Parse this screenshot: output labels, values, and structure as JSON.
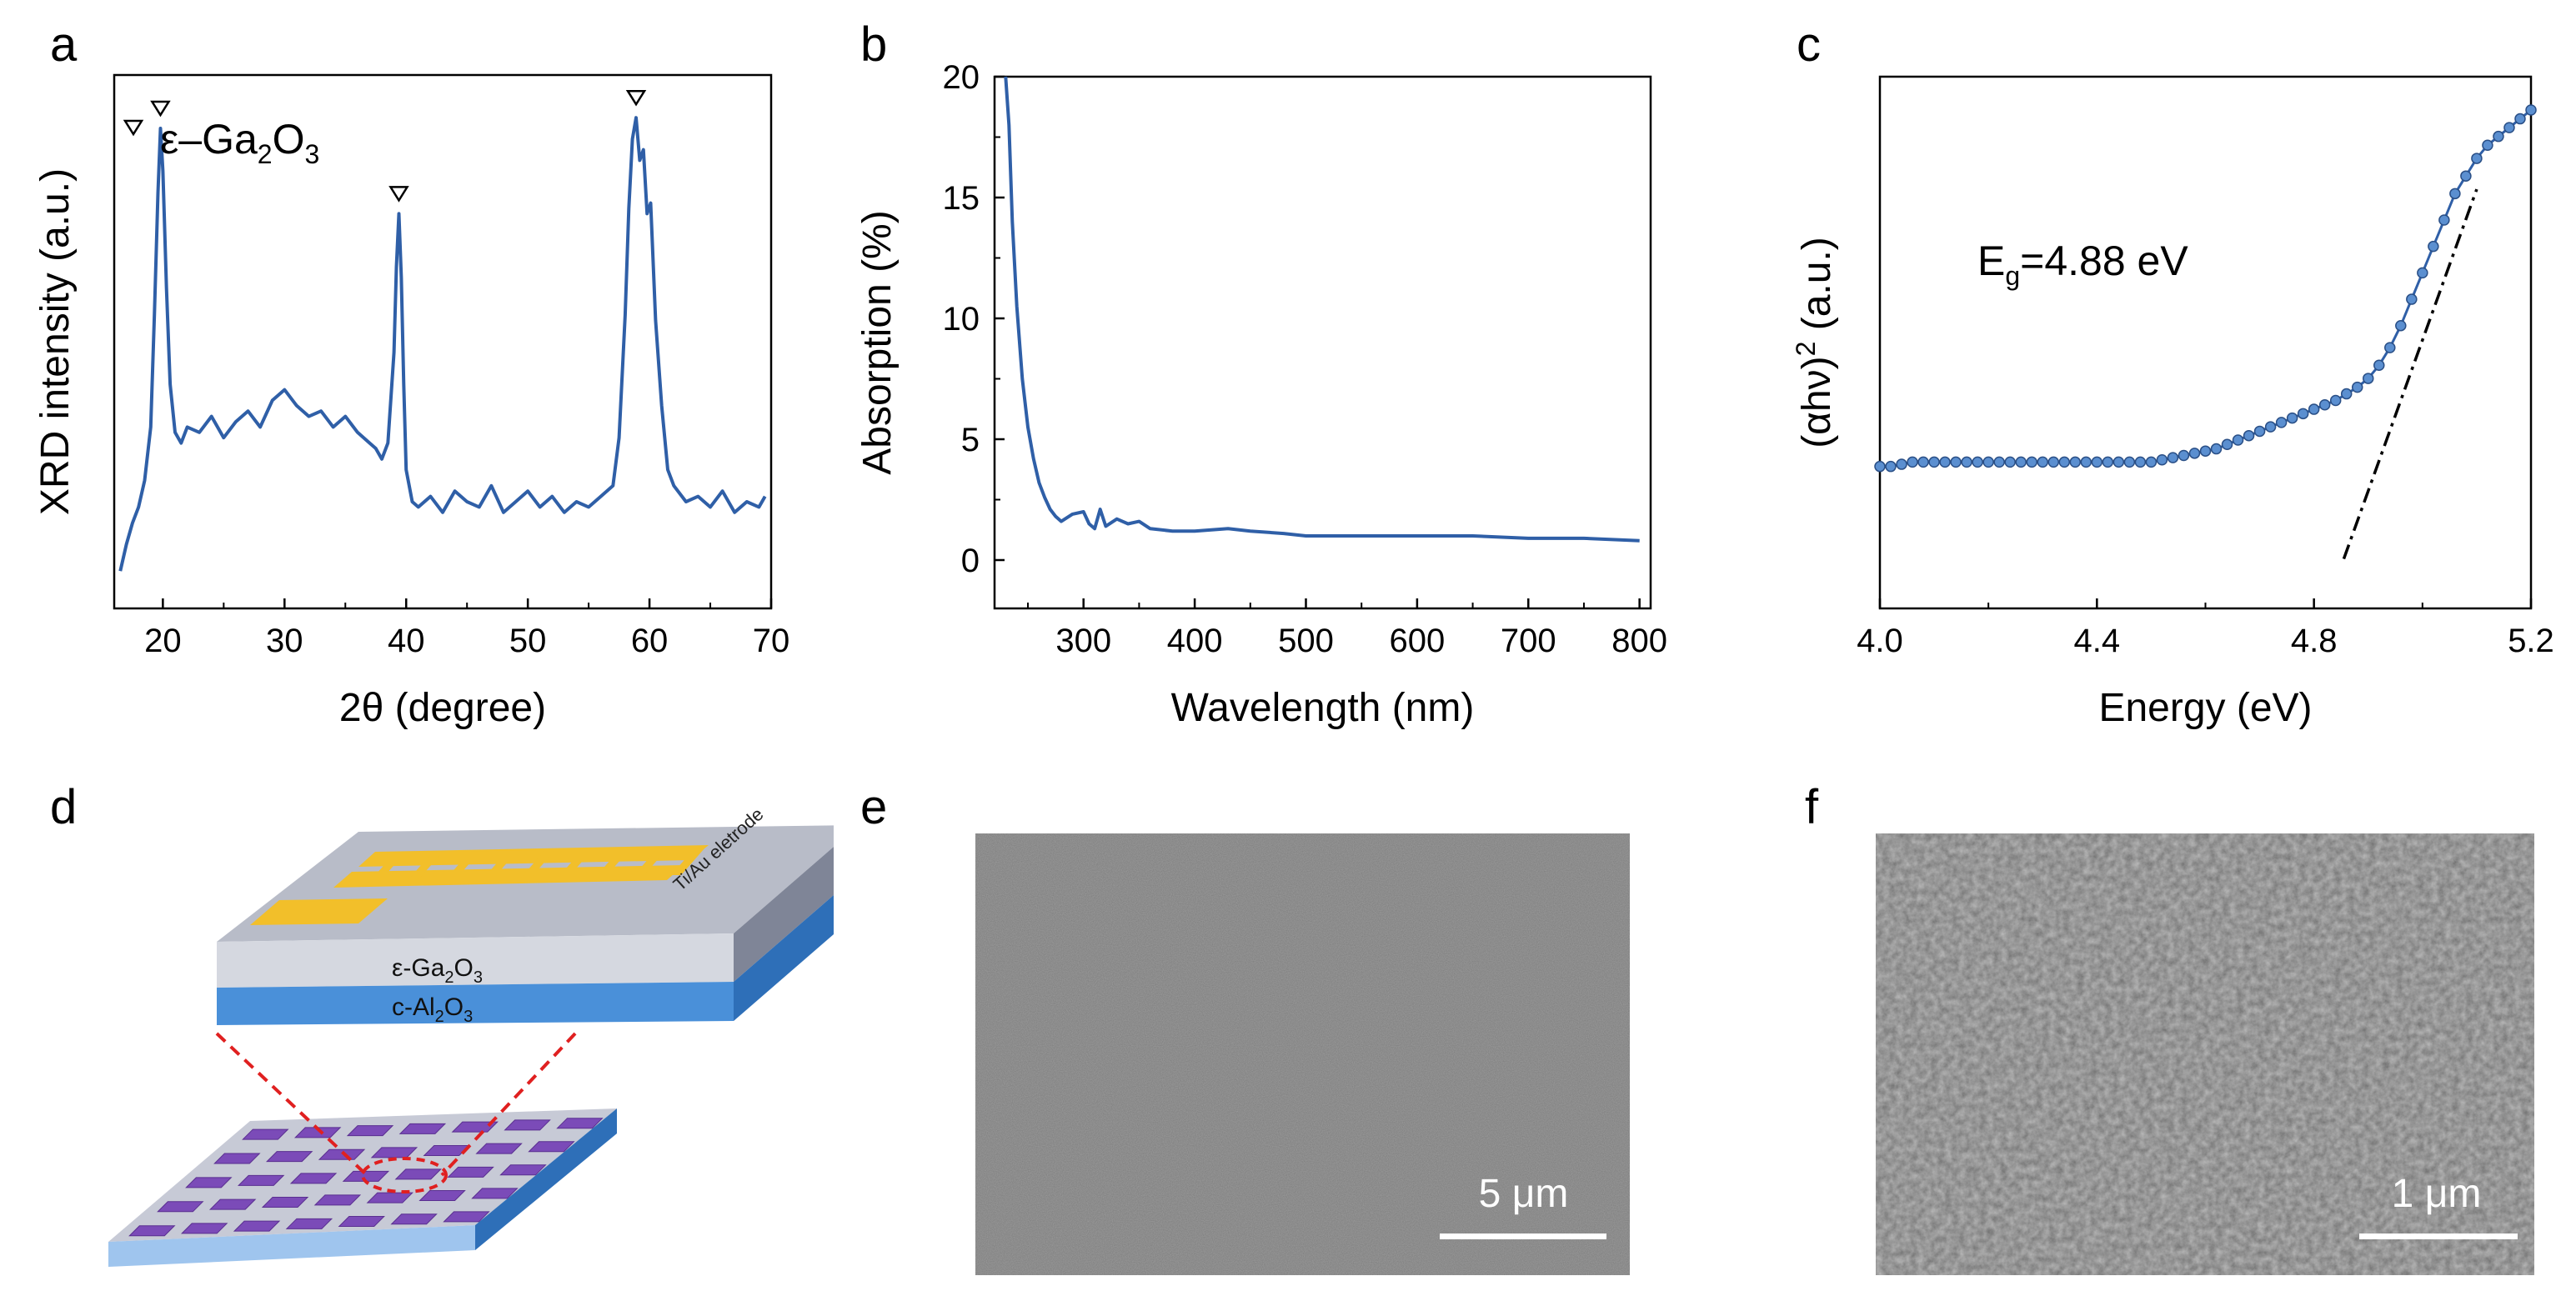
{
  "panels": {
    "a": "a",
    "b": "b",
    "c": "c",
    "d": "d",
    "e": "e",
    "f": "f"
  },
  "colors": {
    "series": "#2f5fa7",
    "fit_line": "#000000",
    "gold": "#f2bf2a",
    "top_layer": "#b8bcc8",
    "substrate": "#4a90d9",
    "chip": "#7b4bb8",
    "dashed": "#e02020"
  },
  "chart_data": [
    {
      "panel": "a",
      "type": "line",
      "xlabel": "2θ (degree)",
      "ylabel": "XRD intensity (a.u.)",
      "xlim": [
        16,
        70
      ],
      "ylim": [
        0,
        1
      ],
      "xticks": [
        20,
        30,
        40,
        50,
        60,
        70
      ],
      "yticks": [],
      "legend": {
        "marker": "▽",
        "label_main": "ε–Ga",
        "sub1": "2",
        "label_mid": "O",
        "sub2": "3",
        "placement": "top-left"
      },
      "peaks": [
        19.8,
        39.4,
        58.9
      ],
      "series": [
        {
          "x": [
            16.5,
            17,
            17.5,
            18,
            18.5,
            19,
            19.3,
            19.6,
            19.8,
            20,
            20.3,
            20.6,
            21,
            21.5,
            22,
            23,
            24,
            25,
            26,
            27,
            28,
            29,
            30,
            31,
            32,
            33,
            34,
            35,
            36,
            37,
            37.5,
            38,
            38.5,
            39,
            39.2,
            39.4,
            39.6,
            39.8,
            40,
            40.5,
            41,
            42,
            43,
            44,
            45,
            46,
            47,
            48,
            49,
            50,
            51,
            52,
            53,
            54,
            55,
            56,
            57,
            57.5,
            58,
            58.3,
            58.6,
            58.9,
            59.2,
            59.5,
            59.8,
            60.1,
            60.5,
            61,
            61.5,
            62,
            63,
            64,
            65,
            66,
            67,
            68,
            69,
            69.5
          ],
          "y": [
            0.07,
            0.12,
            0.16,
            0.19,
            0.24,
            0.34,
            0.55,
            0.78,
            0.9,
            0.82,
            0.6,
            0.42,
            0.33,
            0.31,
            0.34,
            0.33,
            0.36,
            0.32,
            0.35,
            0.37,
            0.34,
            0.39,
            0.41,
            0.38,
            0.36,
            0.37,
            0.34,
            0.36,
            0.33,
            0.31,
            0.3,
            0.28,
            0.31,
            0.48,
            0.64,
            0.74,
            0.62,
            0.42,
            0.26,
            0.2,
            0.19,
            0.21,
            0.18,
            0.22,
            0.2,
            0.19,
            0.23,
            0.18,
            0.2,
            0.22,
            0.19,
            0.21,
            0.18,
            0.2,
            0.19,
            0.21,
            0.23,
            0.32,
            0.55,
            0.75,
            0.88,
            0.92,
            0.84,
            0.86,
            0.74,
            0.76,
            0.54,
            0.38,
            0.26,
            0.23,
            0.2,
            0.21,
            0.19,
            0.22,
            0.18,
            0.2,
            0.19,
            0.21
          ]
        }
      ]
    },
    {
      "panel": "b",
      "type": "line",
      "xlabel": "Wavelength (nm)",
      "ylabel": "Absorption (%)",
      "xlim": [
        220,
        810
      ],
      "ylim": [
        -2,
        20
      ],
      "xticks": [
        300,
        400,
        500,
        600,
        700,
        800
      ],
      "yticks": [
        0,
        5,
        10,
        15,
        20
      ],
      "series": [
        {
          "x": [
            230,
            233,
            236,
            240,
            245,
            250,
            255,
            260,
            265,
            270,
            275,
            280,
            290,
            300,
            305,
            310,
            315,
            320,
            330,
            340,
            350,
            360,
            380,
            400,
            430,
            450,
            480,
            500,
            530,
            560,
            600,
            650,
            700,
            750,
            800
          ],
          "y": [
            20,
            18,
            14,
            10.5,
            7.5,
            5.5,
            4.2,
            3.2,
            2.6,
            2.1,
            1.8,
            1.6,
            1.9,
            2.0,
            1.5,
            1.3,
            2.1,
            1.4,
            1.7,
            1.5,
            1.6,
            1.3,
            1.2,
            1.2,
            1.3,
            1.2,
            1.1,
            1.0,
            1.0,
            1.0,
            1.0,
            1.0,
            0.9,
            0.9,
            0.8
          ]
        }
      ]
    },
    {
      "panel": "c",
      "type": "scatter",
      "xlabel": "Energy (eV)",
      "ylabel_main": "(αhν)",
      "ylabel_sup": "2",
      "ylabel_unit": " (a.u.)",
      "xlim": [
        4.0,
        5.2
      ],
      "ylim": [
        0,
        1
      ],
      "xticks": [
        4.0,
        4.4,
        4.8,
        5.2
      ],
      "xtick_labels": [
        "4.0",
        "4.4",
        "4.8",
        "5.2"
      ],
      "yticks": [],
      "annotation": {
        "main": "E",
        "sub": "g",
        "rest": "=4.88 eV"
      },
      "fit_line": {
        "x": [
          4.855,
          5.1
        ],
        "y": [
          -0.02,
          0.82
        ]
      },
      "series": [
        {
          "x": [
            4.0,
            4.02,
            4.04,
            4.06,
            4.08,
            4.1,
            4.12,
            4.14,
            4.16,
            4.18,
            4.2,
            4.22,
            4.24,
            4.26,
            4.28,
            4.3,
            4.32,
            4.34,
            4.36,
            4.38,
            4.4,
            4.42,
            4.44,
            4.46,
            4.48,
            4.5,
            4.52,
            4.54,
            4.56,
            4.58,
            4.6,
            4.62,
            4.64,
            4.66,
            4.68,
            4.7,
            4.72,
            4.74,
            4.76,
            4.78,
            4.8,
            4.82,
            4.84,
            4.86,
            4.88,
            4.9,
            4.92,
            4.94,
            4.96,
            4.98,
            5.0,
            5.02,
            5.04,
            5.06,
            5.08,
            5.1,
            5.12,
            5.14,
            5.16,
            5.18,
            5.2
          ],
          "y": [
            0.19,
            0.19,
            0.195,
            0.2,
            0.2,
            0.2,
            0.2,
            0.2,
            0.2,
            0.2,
            0.2,
            0.2,
            0.2,
            0.2,
            0.2,
            0.2,
            0.2,
            0.2,
            0.2,
            0.2,
            0.2,
            0.2,
            0.2,
            0.2,
            0.2,
            0.2,
            0.205,
            0.21,
            0.215,
            0.22,
            0.225,
            0.23,
            0.24,
            0.25,
            0.26,
            0.27,
            0.28,
            0.29,
            0.3,
            0.31,
            0.32,
            0.33,
            0.34,
            0.355,
            0.37,
            0.39,
            0.42,
            0.46,
            0.51,
            0.57,
            0.63,
            0.69,
            0.75,
            0.81,
            0.85,
            0.89,
            0.92,
            0.94,
            0.96,
            0.98,
            1.0
          ]
        }
      ]
    }
  ],
  "schematic": {
    "electrode_label": "Ti/Au eletrode",
    "layer_top": {
      "main": "ε-Ga",
      "sub1": "2",
      "mid": "O",
      "sub2": "3"
    },
    "layer_bottom": {
      "main": "c-Al",
      "sub1": "2",
      "mid": "O",
      "sub2": "3"
    }
  },
  "sem": {
    "e": {
      "scale_label": "5 μm"
    },
    "f": {
      "scale_label": "1 μm"
    }
  }
}
